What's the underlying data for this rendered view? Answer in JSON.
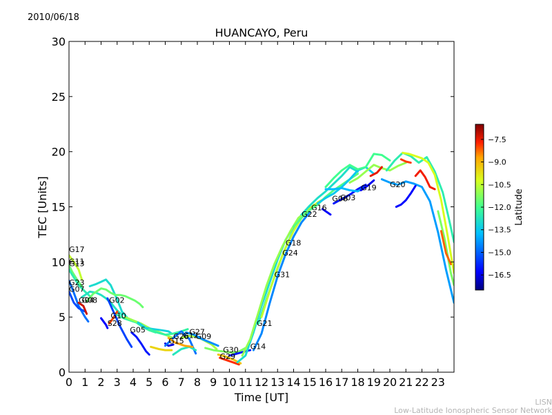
{
  "date": "2010/06/18",
  "footer": {
    "line1": "LISN",
    "line2": "Low-Latitude Ionospheric Sensor Network"
  },
  "chart_data": {
    "type": "scatter",
    "title": "HUANCAYO, Peru",
    "xlabel": "Time [UT]",
    "ylabel": "TEC [Units]",
    "xlim": [
      0,
      24
    ],
    "ylim": [
      0,
      30
    ],
    "xticks": [
      0,
      1,
      2,
      3,
      4,
      5,
      6,
      7,
      8,
      9,
      10,
      11,
      12,
      13,
      14,
      15,
      16,
      17,
      18,
      19,
      20,
      21,
      22,
      23
    ],
    "yticks": [
      0,
      5,
      10,
      15,
      20,
      25,
      30
    ],
    "colorbar": {
      "label": "Latitude",
      "range": [
        -17.5,
        -6.5
      ],
      "ticks": [
        -7.5,
        -9.0,
        -10.5,
        -12.0,
        -13.5,
        -15.0,
        -16.5
      ],
      "tick_labels": [
        "−7.5",
        "−9.0",
        "−10.5",
        "−12.0",
        "−13.5",
        "−15.0",
        "−16.5"
      ]
    },
    "satellite_labels": [
      {
        "name": "G17",
        "x": 0.0,
        "y": 10.9
      },
      {
        "name": "G11",
        "x": 0.0,
        "y": 9.8
      },
      {
        "name": "G13",
        "x": 0.0,
        "y": 9.6
      },
      {
        "name": "G23",
        "x": 0.0,
        "y": 7.9
      },
      {
        "name": "G07",
        "x": 0.0,
        "y": 7.3
      },
      {
        "name": "G04",
        "x": 0.6,
        "y": 6.3
      },
      {
        "name": "G08",
        "x": 0.8,
        "y": 6.3
      },
      {
        "name": "G02",
        "x": 2.5,
        "y": 6.3
      },
      {
        "name": "G10",
        "x": 2.6,
        "y": 4.9
      },
      {
        "name": "S28",
        "x": 2.4,
        "y": 4.2
      },
      {
        "name": "G05",
        "x": 3.8,
        "y": 3.6
      },
      {
        "name": "G15",
        "x": 6.2,
        "y": 2.6
      },
      {
        "name": "G26",
        "x": 6.5,
        "y": 3.0
      },
      {
        "name": "G12",
        "x": 7.1,
        "y": 3.1
      },
      {
        "name": "G27",
        "x": 7.5,
        "y": 3.4
      },
      {
        "name": "G09",
        "x": 7.9,
        "y": 3.0
      },
      {
        "name": "G30",
        "x": 9.6,
        "y": 1.8
      },
      {
        "name": "G29",
        "x": 9.4,
        "y": 1.2
      },
      {
        "name": "G14",
        "x": 11.3,
        "y": 2.1
      },
      {
        "name": "G21",
        "x": 11.7,
        "y": 4.2
      },
      {
        "name": "G31",
        "x": 12.8,
        "y": 8.6
      },
      {
        "name": "G24",
        "x": 13.3,
        "y": 10.6
      },
      {
        "name": "G18",
        "x": 13.5,
        "y": 11.5
      },
      {
        "name": "G22",
        "x": 14.5,
        "y": 14.1
      },
      {
        "name": "G16",
        "x": 15.1,
        "y": 14.7
      },
      {
        "name": "G06",
        "x": 16.4,
        "y": 15.5
      },
      {
        "name": "G03",
        "x": 16.9,
        "y": 15.6
      },
      {
        "name": "G19",
        "x": 18.2,
        "y": 16.5
      },
      {
        "name": "G20",
        "x": 20.0,
        "y": 16.8
      }
    ],
    "series": [
      {
        "name": "G17",
        "lat": -10.5,
        "x": [
          0,
          0.3,
          0.6,
          0.8
        ],
        "y": [
          10.6,
          10.0,
          9.3,
          8.4
        ]
      },
      {
        "name": "G11",
        "lat": -11.5,
        "x": [
          0,
          0.2,
          0.5,
          0.8
        ],
        "y": [
          9.7,
          9.1,
          8.4,
          7.8
        ]
      },
      {
        "name": "G13",
        "lat": -12.5,
        "x": [
          0,
          0.3,
          0.6,
          1.0,
          1.3
        ],
        "y": [
          9.3,
          8.6,
          7.9,
          7.3,
          6.9
        ]
      },
      {
        "name": "G23",
        "lat": -14.8,
        "x": [
          0,
          0.3,
          0.6,
          1.0,
          1.2
        ],
        "y": [
          8.3,
          7.2,
          6.0,
          5.0,
          4.6
        ]
      },
      {
        "name": "G07",
        "lat": -15.3,
        "x": [
          0,
          0.3,
          0.6,
          1.0
        ],
        "y": [
          7.3,
          6.3,
          5.8,
          5.5
        ]
      },
      {
        "name": "G04",
        "lat": -7.2,
        "x": [
          0.6,
          0.9,
          1.1
        ],
        "y": [
          6.3,
          6.0,
          5.3
        ]
      },
      {
        "name": "G08",
        "lat": -12.8,
        "x": [
          0.8,
          1.3,
          1.7,
          2.0,
          2.3,
          2.6,
          3.0,
          3.3
        ],
        "y": [
          6.8,
          7.3,
          7.2,
          7.0,
          6.7,
          6.3,
          5.6,
          5.2
        ]
      },
      {
        "name": "G02a",
        "lat": -13.0,
        "x": [
          1.3,
          1.7,
          2.0,
          2.3,
          2.6,
          3.0,
          3.3,
          3.6
        ],
        "y": [
          7.8,
          8.0,
          8.2,
          8.4,
          7.9,
          6.6,
          5.5,
          5.0
        ]
      },
      {
        "name": "G02b",
        "lat": -11.5,
        "x": [
          1.1,
          1.5,
          2.0,
          2.3,
          2.6,
          2.9,
          3.2,
          3.5,
          3.8,
          4.1,
          4.4,
          4.6
        ],
        "y": [
          6.4,
          7.1,
          7.6,
          7.5,
          7.2,
          7.0,
          7.0,
          6.9,
          6.7,
          6.5,
          6.2,
          5.9
        ]
      },
      {
        "name": "G10",
        "lat": -8.0,
        "x": [
          2.5,
          2.8,
          3.0
        ],
        "y": [
          4.4,
          5.0,
          5.5
        ]
      },
      {
        "name": "S28",
        "lat": -16.3,
        "x": [
          2.0,
          2.3,
          2.4
        ],
        "y": [
          4.9,
          4.3,
          4.0
        ]
      },
      {
        "name": "G05",
        "lat": -15.4,
        "x": [
          2.4,
          2.8,
          3.2,
          3.6,
          3.9
        ],
        "y": [
          6.7,
          5.4,
          4.1,
          3.0,
          2.3
        ]
      },
      {
        "name": "G05b",
        "lat": -16.0,
        "x": [
          3.9,
          4.2,
          4.5,
          4.8,
          5.0
        ],
        "y": [
          3.6,
          3.2,
          2.6,
          1.9,
          1.6
        ]
      },
      {
        "name": "G10b",
        "lat": -12.2,
        "x": [
          3.0,
          3.4,
          3.8,
          4.2,
          4.6,
          5.0,
          5.4
        ],
        "y": [
          5.2,
          4.9,
          4.7,
          4.5,
          4.1,
          3.8,
          3.6
        ]
      },
      {
        "name": "G10c",
        "lat": -11.0,
        "x": [
          3.5,
          4.0,
          4.5,
          5.0,
          5.5,
          6.0,
          6.5
        ],
        "y": [
          5.0,
          4.7,
          4.4,
          4.0,
          3.7,
          3.4,
          3.1
        ]
      },
      {
        "name": "G01",
        "lat": -13.2,
        "x": [
          4.3,
          4.8,
          5.3,
          5.8,
          6.2,
          6.4
        ],
        "y": [
          4.5,
          4.0,
          3.9,
          3.8,
          3.7,
          3.5
        ]
      },
      {
        "name": "G09",
        "lat": -12.3,
        "x": [
          5.0,
          5.5,
          6.0,
          6.5,
          7.0,
          7.4
        ],
        "y": [
          3.9,
          3.6,
          3.4,
          3.5,
          3.7,
          3.9
        ]
      },
      {
        "name": "G15",
        "lat": -9.5,
        "x": [
          5.1,
          5.6,
          6.0,
          6.4
        ],
        "y": [
          2.3,
          2.1,
          2.0,
          2.0
        ]
      },
      {
        "name": "G15b",
        "lat": -16.6,
        "x": [
          6.0,
          6.2,
          6.5
        ],
        "y": [
          2.6,
          2.4,
          2.5
        ]
      },
      {
        "name": "G26",
        "lat": -14.8,
        "x": [
          6.0,
          6.5,
          7.0,
          7.5,
          7.9
        ],
        "y": [
          2.4,
          3.1,
          3.7,
          3.0,
          1.7
        ]
      },
      {
        "name": "G12",
        "lat": -12.7,
        "x": [
          6.5,
          7.0,
          7.5,
          7.9
        ],
        "y": [
          1.6,
          2.1,
          2.3,
          2.0
        ]
      },
      {
        "name": "G27",
        "lat": -10.8,
        "x": [
          7.0,
          7.5,
          8.0,
          8.4,
          8.9,
          9.2
        ],
        "y": [
          3.1,
          3.3,
          3.2,
          2.9,
          2.5,
          2.1
        ]
      },
      {
        "name": "G09b",
        "lat": -14.4,
        "x": [
          7.3,
          7.8,
          8.3,
          8.8,
          9.3
        ],
        "y": [
          3.6,
          3.4,
          3.0,
          2.7,
          2.4
        ]
      },
      {
        "name": "G21",
        "lat": -8.7,
        "x": [
          6.2,
          6.6,
          7.2,
          7.7
        ],
        "y": [
          3.1,
          2.7,
          2.4,
          2.3
        ]
      },
      {
        "name": "G30",
        "lat": -11.3,
        "x": [
          8.5,
          9.0,
          9.5,
          10.0,
          10.5,
          11.0
        ],
        "y": [
          2.2,
          2.0,
          1.9,
          1.8,
          1.8,
          2.2
        ]
      },
      {
        "name": "G29",
        "lat": -7.8,
        "x": [
          9.4,
          9.8,
          10.2,
          10.6
        ],
        "y": [
          1.3,
          1.1,
          0.9,
          0.7
        ]
      },
      {
        "name": "G29b",
        "lat": -9.2,
        "x": [
          9.3,
          9.8,
          10.3,
          10.7
        ],
        "y": [
          1.6,
          1.4,
          1.1,
          0.8
        ]
      },
      {
        "name": "G14a",
        "lat": -16.0,
        "x": [
          10.0,
          10.5,
          11.0,
          11.3
        ],
        "y": [
          1.5,
          1.7,
          1.9,
          2.0
        ]
      },
      {
        "name": "G14b",
        "lat": -13.0,
        "x": [
          10.5,
          11.0,
          11.5,
          12.0,
          12.5,
          13.0,
          13.5,
          14.0,
          14.5,
          15.0
        ],
        "y": [
          0.9,
          1.5,
          3.6,
          6.0,
          8.1,
          10.2,
          12.0,
          13.2,
          14.3,
          15.0
        ]
      },
      {
        "name": "G21b",
        "lat": -11.0,
        "x": [
          10.8,
          11.3,
          11.8,
          12.3,
          12.8,
          13.3,
          13.8,
          14.3,
          14.8,
          15.3
        ],
        "y": [
          1.5,
          3.0,
          5.4,
          7.8,
          9.8,
          11.4,
          12.8,
          14.0,
          14.6,
          15.2
        ]
      },
      {
        "name": "G31",
        "lat": -14.5,
        "x": [
          11.5,
          12.0,
          12.5,
          13.0,
          13.5,
          14.0,
          14.5,
          15.0
        ],
        "y": [
          2.0,
          3.5,
          6.2,
          8.7,
          10.7,
          12.3,
          13.6,
          14.5
        ]
      },
      {
        "name": "G24",
        "lat": -12.6,
        "x": [
          11.8,
          12.3,
          12.8,
          13.3,
          13.8,
          14.3
        ],
        "y": [
          4.4,
          6.6,
          8.6,
          10.6,
          12.3,
          13.7
        ]
      },
      {
        "name": "G18",
        "lat": -10.5,
        "x": [
          12.0,
          12.5,
          13.0,
          13.5,
          14.0,
          14.5,
          15.0,
          15.5,
          16.0
        ],
        "y": [
          5.0,
          7.3,
          9.5,
          11.3,
          12.8,
          14.0,
          14.8,
          15.4,
          15.8
        ]
      },
      {
        "name": "G22",
        "lat": -11.8,
        "x": [
          14.0,
          14.5,
          15.0,
          15.5,
          16.0,
          16.5,
          17.0,
          17.5,
          18.0
        ],
        "y": [
          13.2,
          14.0,
          14.7,
          15.2,
          15.9,
          16.5,
          17.0,
          17.5,
          18.0
        ]
      },
      {
        "name": "G16",
        "lat": -12.9,
        "x": [
          14.5,
          15.0,
          15.5,
          16.0,
          16.5,
          17.0,
          17.5,
          18.0
        ],
        "y": [
          14.3,
          15.1,
          15.8,
          16.4,
          17.1,
          17.8,
          18.6,
          18.2
        ]
      },
      {
        "name": "G06",
        "lat": -13.5,
        "x": [
          15.5,
          16.0,
          16.5,
          17.0,
          17.5,
          18.0,
          18.5,
          19.0
        ],
        "y": [
          15.3,
          15.8,
          16.2,
          16.8,
          17.5,
          18.3,
          18.6,
          18.0
        ]
      },
      {
        "name": "G06b",
        "lat": -16.3,
        "x": [
          15.8,
          16.1,
          16.3
        ],
        "y": [
          14.8,
          14.5,
          14.3
        ]
      },
      {
        "name": "G03",
        "lat": -16.0,
        "x": [
          16.5,
          17.0,
          17.5,
          18.0,
          18.5
        ],
        "y": [
          15.3,
          15.7,
          16.1,
          16.6,
          17.0
        ]
      },
      {
        "name": "G03b",
        "lat": -13.8,
        "x": [
          16.0,
          16.5,
          17.0,
          17.5,
          18.0,
          18.5
        ],
        "y": [
          16.6,
          16.6,
          16.7,
          16.5,
          16.4,
          16.8
        ]
      },
      {
        "name": "G19",
        "lat": -16.4,
        "x": [
          18.2,
          18.6,
          19.0
        ],
        "y": [
          16.5,
          16.9,
          17.4
        ]
      },
      {
        "name": "G19b",
        "lat": -12.0,
        "x": [
          16.0,
          16.5,
          17.0,
          17.5,
          18.0,
          18.5,
          19.0,
          19.5,
          20.0
        ],
        "y": [
          16.8,
          17.6,
          18.3,
          18.8,
          18.4,
          18.6,
          19.8,
          19.7,
          19.2
        ]
      },
      {
        "name": "G08b",
        "lat": -11.0,
        "x": [
          17.5,
          18.0,
          18.5,
          19.0,
          19.5,
          20.0,
          20.5,
          21.0
        ],
        "y": [
          17.2,
          17.6,
          18.2,
          18.8,
          18.5,
          18.3,
          18.7,
          19.0
        ]
      },
      {
        "name": "G25",
        "lat": -7.5,
        "x": [
          18.8,
          19.2,
          19.5
        ],
        "y": [
          17.8,
          18.1,
          18.6
        ]
      },
      {
        "name": "G20",
        "lat": -14.2,
        "x": [
          19.5,
          20.0,
          20.5,
          21.0,
          21.5,
          22.0,
          22.5,
          23.0,
          23.5,
          24.0
        ],
        "y": [
          17.5,
          17.2,
          17.0,
          17.3,
          17.1,
          16.8,
          15.5,
          12.7,
          9.3,
          6.3
        ]
      },
      {
        "name": "G20b",
        "lat": -12.5,
        "x": [
          19.8,
          20.3,
          20.8,
          21.3,
          21.8,
          22.3,
          22.8,
          23.3,
          23.7,
          24.0
        ],
        "y": [
          18.3,
          19.2,
          19.9,
          19.6,
          19.0,
          19.5,
          18.2,
          16.3,
          13.8,
          11.8
        ]
      },
      {
        "name": "G32",
        "lat": -10.2,
        "x": [
          20.8,
          21.2,
          21.6,
          22.0,
          22.4,
          22.8,
          23.2,
          23.6,
          24.0
        ],
        "y": [
          19.9,
          19.8,
          19.6,
          19.4,
          19.0,
          17.9,
          15.6,
          12.4,
          9.0
        ]
      },
      {
        "name": "G32b",
        "lat": -7.6,
        "x": [
          21.6,
          21.9,
          22.2,
          22.5,
          22.8
        ],
        "y": [
          17.8,
          18.3,
          17.7,
          16.8,
          16.6
        ]
      },
      {
        "name": "G28",
        "lat": -7.9,
        "x": [
          20.7,
          21.0,
          21.3
        ],
        "y": [
          19.3,
          19.1,
          19.0
        ]
      },
      {
        "name": "G01b",
        "lat": -16.2,
        "x": [
          20.4,
          20.7,
          21.0,
          21.3,
          21.6
        ],
        "y": [
          15.0,
          15.2,
          15.6,
          16.2,
          16.9
        ]
      },
      {
        "name": "G04b",
        "lat": -11.3,
        "x": [
          23.0,
          23.4,
          23.8,
          24.0
        ],
        "y": [
          14.6,
          12.2,
          9.0,
          7.9
        ]
      },
      {
        "name": "G18b",
        "lat": -8.2,
        "x": [
          23.2,
          23.5,
          23.8
        ],
        "y": [
          12.8,
          10.8,
          9.8
        ]
      }
    ]
  }
}
